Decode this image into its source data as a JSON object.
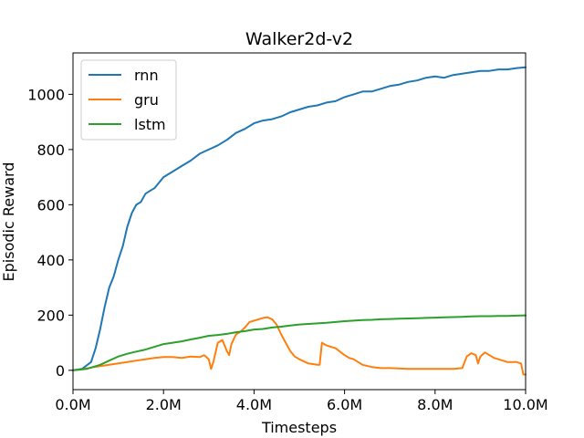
{
  "chart_data": {
    "type": "line",
    "title": "Walker2d-v2",
    "xlabel": "Timesteps",
    "ylabel": "Episodic Reward",
    "xlim": [
      0,
      10000000
    ],
    "ylim": [
      -70,
      1150
    ],
    "x_ticks": [
      {
        "value": 0,
        "label": "0.0M"
      },
      {
        "value": 2000000,
        "label": "2.0M"
      },
      {
        "value": 4000000,
        "label": "4.0M"
      },
      {
        "value": 6000000,
        "label": "6.0M"
      },
      {
        "value": 8000000,
        "label": "8.0M"
      },
      {
        "value": 10000000,
        "label": "10.0M"
      }
    ],
    "y_ticks": [
      {
        "value": 0,
        "label": "0"
      },
      {
        "value": 200,
        "label": "200"
      },
      {
        "value": 400,
        "label": "400"
      },
      {
        "value": 600,
        "label": "600"
      },
      {
        "value": 800,
        "label": "800"
      },
      {
        "value": 1000,
        "label": "1000"
      }
    ],
    "grid": false,
    "legend_position": "top-left",
    "series": [
      {
        "name": "rnn",
        "color": "#1f77b4",
        "points": [
          [
            0,
            0
          ],
          [
            200000,
            5
          ],
          [
            400000,
            30
          ],
          [
            500000,
            80
          ],
          [
            600000,
            150
          ],
          [
            700000,
            230
          ],
          [
            800000,
            300
          ],
          [
            900000,
            340
          ],
          [
            1000000,
            400
          ],
          [
            1100000,
            450
          ],
          [
            1200000,
            520
          ],
          [
            1300000,
            570
          ],
          [
            1400000,
            600
          ],
          [
            1500000,
            610
          ],
          [
            1600000,
            640
          ],
          [
            1700000,
            650
          ],
          [
            1800000,
            660
          ],
          [
            1900000,
            680
          ],
          [
            2000000,
            700
          ],
          [
            2200000,
            720
          ],
          [
            2400000,
            740
          ],
          [
            2600000,
            760
          ],
          [
            2800000,
            785
          ],
          [
            3000000,
            800
          ],
          [
            3200000,
            815
          ],
          [
            3400000,
            835
          ],
          [
            3600000,
            860
          ],
          [
            3800000,
            875
          ],
          [
            4000000,
            895
          ],
          [
            4200000,
            905
          ],
          [
            4400000,
            910
          ],
          [
            4600000,
            920
          ],
          [
            4800000,
            935
          ],
          [
            5000000,
            945
          ],
          [
            5200000,
            955
          ],
          [
            5400000,
            960
          ],
          [
            5600000,
            970
          ],
          [
            5800000,
            975
          ],
          [
            6000000,
            990
          ],
          [
            6200000,
            1000
          ],
          [
            6400000,
            1010
          ],
          [
            6600000,
            1010
          ],
          [
            6800000,
            1020
          ],
          [
            7000000,
            1030
          ],
          [
            7200000,
            1035
          ],
          [
            7400000,
            1045
          ],
          [
            7600000,
            1050
          ],
          [
            7800000,
            1060
          ],
          [
            8000000,
            1065
          ],
          [
            8200000,
            1060
          ],
          [
            8400000,
            1070
          ],
          [
            8600000,
            1075
          ],
          [
            8800000,
            1080
          ],
          [
            9000000,
            1085
          ],
          [
            9200000,
            1085
          ],
          [
            9400000,
            1090
          ],
          [
            9600000,
            1090
          ],
          [
            9800000,
            1095
          ],
          [
            10000000,
            1098
          ]
        ]
      },
      {
        "name": "gru",
        "color": "#ff7f0e",
        "points": [
          [
            0,
            0
          ],
          [
            200000,
            3
          ],
          [
            400000,
            10
          ],
          [
            600000,
            15
          ],
          [
            800000,
            20
          ],
          [
            1000000,
            25
          ],
          [
            1200000,
            30
          ],
          [
            1400000,
            35
          ],
          [
            1600000,
            40
          ],
          [
            1800000,
            45
          ],
          [
            2000000,
            48
          ],
          [
            2200000,
            48
          ],
          [
            2400000,
            45
          ],
          [
            2600000,
            50
          ],
          [
            2800000,
            48
          ],
          [
            2900000,
            55
          ],
          [
            3000000,
            40
          ],
          [
            3050000,
            5
          ],
          [
            3100000,
            30
          ],
          [
            3200000,
            100
          ],
          [
            3300000,
            110
          ],
          [
            3400000,
            70
          ],
          [
            3450000,
            55
          ],
          [
            3500000,
            95
          ],
          [
            3600000,
            130
          ],
          [
            3700000,
            140
          ],
          [
            3800000,
            155
          ],
          [
            3900000,
            175
          ],
          [
            4000000,
            180
          ],
          [
            4100000,
            185
          ],
          [
            4200000,
            190
          ],
          [
            4300000,
            192
          ],
          [
            4400000,
            185
          ],
          [
            4500000,
            165
          ],
          [
            4600000,
            130
          ],
          [
            4700000,
            100
          ],
          [
            4800000,
            70
          ],
          [
            4900000,
            50
          ],
          [
            5000000,
            40
          ],
          [
            5200000,
            25
          ],
          [
            5400000,
            20
          ],
          [
            5450000,
            20
          ],
          [
            5500000,
            100
          ],
          [
            5600000,
            90
          ],
          [
            5800000,
            80
          ],
          [
            6000000,
            55
          ],
          [
            6100000,
            45
          ],
          [
            6200000,
            40
          ],
          [
            6400000,
            20
          ],
          [
            6600000,
            12
          ],
          [
            6800000,
            8
          ],
          [
            7000000,
            8
          ],
          [
            7200000,
            7
          ],
          [
            7400000,
            5
          ],
          [
            7600000,
            5
          ],
          [
            7800000,
            5
          ],
          [
            8000000,
            5
          ],
          [
            8200000,
            5
          ],
          [
            8400000,
            5
          ],
          [
            8600000,
            8
          ],
          [
            8700000,
            50
          ],
          [
            8800000,
            62
          ],
          [
            8900000,
            55
          ],
          [
            8950000,
            25
          ],
          [
            9000000,
            50
          ],
          [
            9100000,
            65
          ],
          [
            9200000,
            55
          ],
          [
            9300000,
            45
          ],
          [
            9400000,
            40
          ],
          [
            9600000,
            30
          ],
          [
            9800000,
            30
          ],
          [
            9900000,
            25
          ],
          [
            9950000,
            -15
          ],
          [
            10000000,
            -15
          ]
        ]
      },
      {
        "name": "lstm",
        "color": "#2ca02c",
        "points": [
          [
            0,
            0
          ],
          [
            300000,
            5
          ],
          [
            600000,
            20
          ],
          [
            800000,
            35
          ],
          [
            1000000,
            50
          ],
          [
            1200000,
            60
          ],
          [
            1400000,
            68
          ],
          [
            1600000,
            75
          ],
          [
            1800000,
            85
          ],
          [
            2000000,
            95
          ],
          [
            2200000,
            100
          ],
          [
            2400000,
            105
          ],
          [
            2600000,
            112
          ],
          [
            2800000,
            118
          ],
          [
            3000000,
            125
          ],
          [
            3200000,
            128
          ],
          [
            3400000,
            132
          ],
          [
            3600000,
            138
          ],
          [
            3800000,
            142
          ],
          [
            4000000,
            148
          ],
          [
            4200000,
            150
          ],
          [
            4400000,
            155
          ],
          [
            4600000,
            158
          ],
          [
            4800000,
            162
          ],
          [
            5000000,
            166
          ],
          [
            5200000,
            168
          ],
          [
            5400000,
            170
          ],
          [
            5600000,
            172
          ],
          [
            5800000,
            175
          ],
          [
            6000000,
            178
          ],
          [
            6200000,
            180
          ],
          [
            6400000,
            182
          ],
          [
            6600000,
            183
          ],
          [
            6800000,
            185
          ],
          [
            7000000,
            186
          ],
          [
            7200000,
            187
          ],
          [
            7400000,
            188
          ],
          [
            7600000,
            189
          ],
          [
            7800000,
            190
          ],
          [
            8000000,
            191
          ],
          [
            8200000,
            192
          ],
          [
            8400000,
            193
          ],
          [
            8600000,
            194
          ],
          [
            8800000,
            195
          ],
          [
            9000000,
            196
          ],
          [
            9200000,
            196
          ],
          [
            9400000,
            197
          ],
          [
            9600000,
            197
          ],
          [
            9800000,
            198
          ],
          [
            10000000,
            199
          ]
        ]
      }
    ]
  }
}
